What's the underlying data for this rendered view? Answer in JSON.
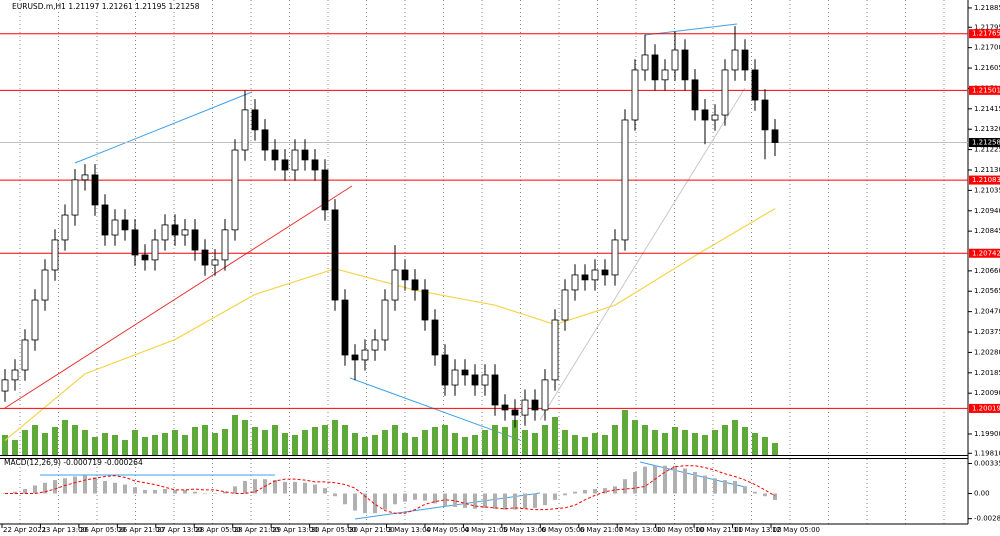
{
  "chart_data": [
    {
      "type": "candlestick",
      "title": "EURUSD.m,H1  1.21197 1.21261 1.21195 1.21258",
      "open": [
        1.201,
        1.20152,
        1.20198,
        1.20338,
        1.20524,
        1.20664,
        1.20804,
        1.2092,
        1.21084,
        1.21107,
        1.20967,
        1.20827,
        1.20897,
        1.20851,
        1.20734,
        1.20711,
        1.20804,
        1.20874,
        1.20827,
        1.20851,
        1.20757,
        1.20687,
        1.20711,
        1.20851,
        1.21223,
        1.2141,
        1.21317,
        1.21223,
        1.21177,
        1.2113,
        1.21223,
        1.21177,
        1.2113,
        1.20944,
        1.20524,
        1.20268,
        1.20245,
        1.20291,
        1.20338,
        1.20524,
        1.20664,
        1.20618,
        1.20571,
        1.20431,
        1.20268,
        1.20128,
        1.20198,
        1.20175,
        1.20128,
        1.20175,
        1.20035,
        1.20012,
        1.19988,
        1.20058,
        1.20012,
        1.20152,
        1.20431,
        1.20571,
        1.20641,
        1.20618,
        1.20664,
        1.20641,
        1.20804,
        1.21363,
        1.21596,
        1.21666,
        1.2155,
        1.21596,
        1.21689,
        1.2155,
        1.2141,
        1.21363,
        1.21386,
        1.21596,
        1.21689,
        1.21596,
        1.21456,
        1.21317
      ],
      "high": [
        1.20202,
        1.20248,
        1.20388,
        1.20574,
        1.20714,
        1.20854,
        1.2097,
        1.21134,
        1.21157,
        1.21157,
        1.21017,
        1.20947,
        1.20947,
        1.20901,
        1.20784,
        1.20854,
        1.20924,
        1.20924,
        1.20901,
        1.20901,
        1.20807,
        1.20761,
        1.20901,
        1.21273,
        1.215,
        1.2146,
        1.21367,
        1.21273,
        1.21227,
        1.21273,
        1.21273,
        1.21227,
        1.2118,
        1.20994,
        1.20574,
        1.20318,
        1.20341,
        1.20388,
        1.20574,
        1.2078,
        1.20714,
        1.20668,
        1.20621,
        1.20481,
        1.20318,
        1.20248,
        1.20248,
        1.20225,
        1.20225,
        1.20225,
        1.20085,
        1.20062,
        1.20108,
        1.20108,
        1.20202,
        1.20481,
        1.20621,
        1.20691,
        1.20691,
        1.20714,
        1.20714,
        1.20854,
        1.21413,
        1.21646,
        1.2176,
        1.21716,
        1.21646,
        1.21775,
        1.21739,
        1.216,
        1.2146,
        1.21436,
        1.21646,
        1.218,
        1.21739,
        1.21646,
        1.21506,
        1.21367
      ],
      "low": [
        1.2005,
        1.20102,
        1.20148,
        1.20288,
        1.20474,
        1.20614,
        1.20754,
        1.2087,
        1.21034,
        1.20917,
        1.20777,
        1.20777,
        1.20801,
        1.20684,
        1.20661,
        1.20661,
        1.20754,
        1.20777,
        1.20777,
        1.20707,
        1.20637,
        1.20637,
        1.20661,
        1.20801,
        1.21173,
        1.21267,
        1.21173,
        1.21127,
        1.2108,
        1.2108,
        1.21127,
        1.2108,
        1.20894,
        1.20474,
        1.20218,
        1.2015,
        1.20195,
        1.20241,
        1.20288,
        1.20474,
        1.20568,
        1.20521,
        1.20381,
        1.20218,
        1.20078,
        1.20078,
        1.20125,
        1.20078,
        1.20078,
        1.19985,
        1.19962,
        1.1993,
        1.19938,
        1.19962,
        1.19962,
        1.20102,
        1.20381,
        1.20521,
        1.20568,
        1.20568,
        1.20591,
        1.20591,
        1.20754,
        1.21313,
        1.21546,
        1.215,
        1.215,
        1.21546,
        1.215,
        1.2136,
        1.2125,
        1.21313,
        1.21336,
        1.21546,
        1.21546,
        1.21406,
        1.2118,
        1.21195
      ],
      "close": [
        1.20152,
        1.20198,
        1.20338,
        1.20524,
        1.20664,
        1.20804,
        1.2092,
        1.21084,
        1.21107,
        1.20967,
        1.20827,
        1.20897,
        1.20851,
        1.20734,
        1.20711,
        1.20804,
        1.20874,
        1.20827,
        1.20851,
        1.20757,
        1.20687,
        1.20711,
        1.20851,
        1.21223,
        1.2141,
        1.21317,
        1.21223,
        1.21177,
        1.2113,
        1.21223,
        1.21177,
        1.2113,
        1.20944,
        1.20524,
        1.20268,
        1.20245,
        1.20291,
        1.20338,
        1.20524,
        1.20664,
        1.20618,
        1.20571,
        1.20431,
        1.20268,
        1.20128,
        1.20198,
        1.20175,
        1.20128,
        1.20175,
        1.20035,
        1.20012,
        1.19988,
        1.20058,
        1.20012,
        1.20152,
        1.20431,
        1.20571,
        1.20641,
        1.20618,
        1.20664,
        1.20641,
        1.20804,
        1.21363,
        1.21596,
        1.21666,
        1.2155,
        1.21596,
        1.21689,
        1.2155,
        1.2141,
        1.21363,
        1.21386,
        1.21596,
        1.21689,
        1.21596,
        1.21456,
        1.21317,
        1.21258
      ],
      "volume": [
        20,
        15,
        25,
        30,
        22,
        28,
        35,
        30,
        25,
        18,
        22,
        20,
        15,
        25,
        18,
        20,
        22,
        25,
        20,
        28,
        30,
        22,
        26,
        40,
        35,
        28,
        25,
        30,
        22,
        20,
        25,
        28,
        30,
        35,
        30,
        22,
        18,
        20,
        25,
        30,
        22,
        18,
        25,
        28,
        30,
        22,
        18,
        20,
        25,
        30,
        28,
        35,
        25,
        22,
        30,
        38,
        25,
        20,
        18,
        22,
        20,
        30,
        45,
        35,
        30,
        25,
        22,
        28,
        25,
        22,
        20,
        25,
        30,
        35,
        28,
        22,
        18,
        12
      ],
      "volume_color": "#5fa83a",
      "ma": {
        "x": [
          0,
          8,
          17,
          25,
          33,
          41,
          49,
          55,
          61,
          69,
          77
        ],
        "values": [
          1.1987,
          1.2018,
          1.2034,
          1.2055,
          1.2067,
          1.2057,
          1.205,
          1.2041,
          1.205,
          1.2073,
          1.2095
        ],
        "color": "#f5d44a"
      },
      "ylim": [
        1.19802,
        1.21922
      ],
      "yticks": [
        1.21885,
        1.21795,
        {
          "value": 1.217,
          "label": "1.21700"
        },
        1.21605,
        {
          "value": 1.2151,
          "label": "1.21510"
        },
        1.21415,
        {
          "value": 1.2132,
          "label": "1.21320"
        },
        1.21225,
        {
          "value": 1.2113,
          "label": "1.21130"
        },
        1.21035,
        {
          "value": 1.2094,
          "label": "1.20940"
        },
        1.20845,
        {
          "value": 1.2066,
          "label": "1.20660"
        },
        1.20565,
        {
          "value": 1.2047,
          "label": "1.20470"
        },
        1.20375,
        {
          "value": 1.2028,
          "label": "1.20280"
        },
        1.20185,
        {
          "value": 1.2009,
          "label": "1.20090"
        },
        {
          "value": 1.199,
          "label": "1.19900"
        },
        {
          "value": 1.1981,
          "label": "1.19810"
        }
      ],
      "levels": [
        1.21765,
        1.21501,
        1.21083,
        1.20742,
        1.20019
      ],
      "level_color": "#ff0000",
      "current_price": 1.21258,
      "time_labels": [
        "22 Apr 2021",
        "23 Apr 13:00",
        "26 Apr 05:00",
        "26 Apr 21:00",
        "27 Apr 13:00",
        "28 Apr 05:00",
        "28 Apr 21:00",
        "29 Apr 13:00",
        "30 Apr 05:00",
        "30 Apr 21:00",
        "3 May 13:00",
        "4 May 05:00",
        "4 May 21:00",
        "5 May 13:00",
        "6 May 05:00",
        "6 May 21:00",
        "7 May 13:00",
        "10 May 05:00",
        "10 May 21:00",
        "11 May 13:00",
        "12 May 05:00"
      ]
    },
    {
      "type": "macd",
      "title": "MACD(12,26,9) -0.000719 -0.000264",
      "values": [
        0,
        0.0002,
        0.0005,
        0.0009,
        0.0012,
        0.0015,
        0.0017,
        0.0019,
        0.002,
        0.0018,
        0.0014,
        0.0012,
        0.001,
        0.0007,
        0.0004,
        0.0004,
        0.0005,
        0.0004,
        0.0004,
        0.0002,
        0,
        0,
        0.0002,
        0.0008,
        0.0014,
        0.0016,
        0.0016,
        0.0015,
        0.0013,
        0.0013,
        0.0012,
        0.001,
        0.0006,
        -0.0003,
        -0.0012,
        -0.0019,
        -0.0022,
        -0.0022,
        -0.0018,
        -0.0012,
        -0.0009,
        -0.0007,
        -0.0008,
        -0.0011,
        -0.0014,
        -0.0015,
        -0.0016,
        -0.0017,
        -0.0016,
        -0.0017,
        -0.0018,
        -0.0018,
        -0.0017,
        -0.0016,
        -0.0013,
        -0.0007,
        -0.0002,
        0.0002,
        0.0004,
        0.0005,
        0.0006,
        0.0008,
        0.0016,
        0.0024,
        0.003,
        0.0031,
        0.0031,
        0.0031,
        0.0028,
        0.0024,
        0.002,
        0.0017,
        0.0015,
        0.0014,
        0.0008,
        0.0002,
        -0.0003,
        -0.000719
      ],
      "signal": [
        0,
        0,
        0,
        0,
        0.0002,
        0.0005,
        0.0009,
        0.0012,
        0.0015,
        0.0017,
        0.0019,
        0.002,
        0.0018,
        0.0014,
        0.0012,
        0.001,
        0.0007,
        0.0004,
        0.0004,
        0.0005,
        0.0004,
        0.0004,
        0.0002,
        0,
        0,
        0.0002,
        0.0008,
        0.0014,
        0.0016,
        0.0016,
        0.0015,
        0.0013,
        0.0013,
        0.0012,
        0.001,
        0.0006,
        -0.0003,
        -0.0012,
        -0.0019,
        -0.0022,
        -0.0022,
        -0.0018,
        -0.0012,
        -0.0009,
        -0.0007,
        -0.0008,
        -0.0011,
        -0.0014,
        -0.0015,
        -0.0016,
        -0.0017,
        -0.0016,
        -0.0017,
        -0.0018,
        -0.0018,
        -0.0017,
        -0.0016,
        -0.0013,
        -0.0007,
        -0.0002,
        0.0002,
        0.0004,
        0.0005,
        0.0006,
        0.0008,
        0.0016,
        0.0024,
        0.003,
        0.0031,
        0.0031,
        0.0029,
        0.0026,
        0.0022,
        0.0019,
        0.0015,
        0.001,
        0.0004,
        -0.000264
      ],
      "color": "#b0b0b0",
      "signal_color": "#ff0000",
      "ylim": [
        -0.0034,
        0.00385
      ],
      "yticks": [
        0.003353,
        {
          "value": 0,
          "label": "0.00"
        },
        -0.002805
      ]
    }
  ]
}
